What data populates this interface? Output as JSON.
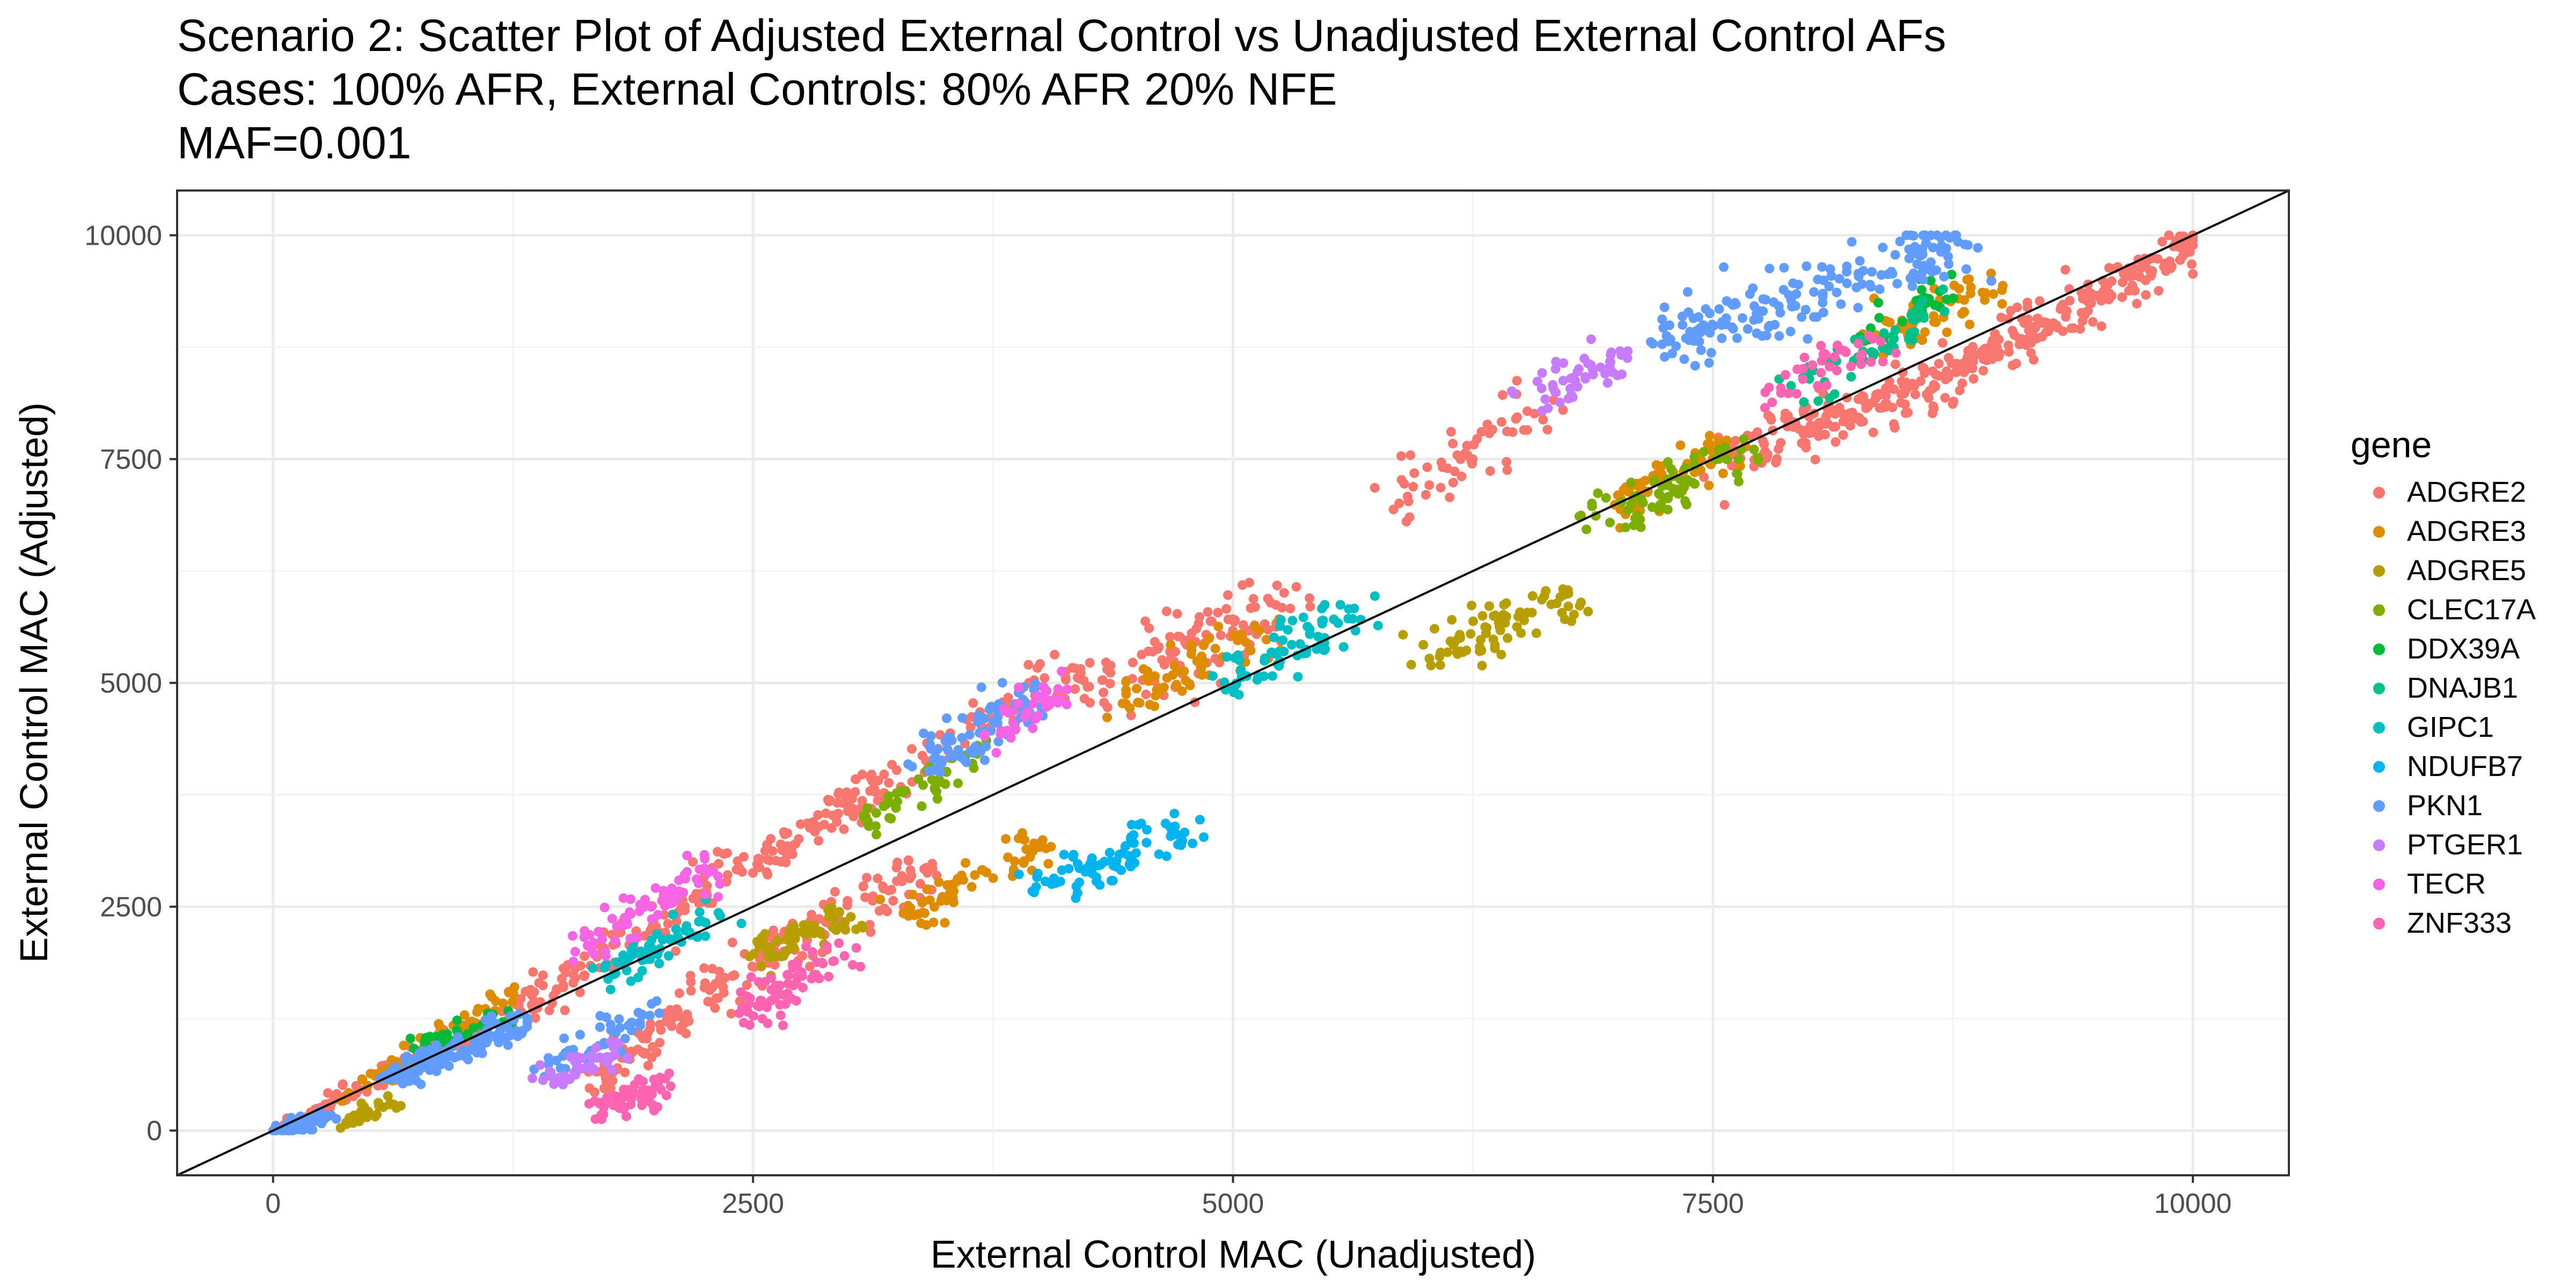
{
  "chart_data": {
    "type": "scatter",
    "title": "Scenario 2: Scatter Plot of Adjusted External Control vs Unadjusted External Control AFs",
    "subtitle": "Cases: 100% AFR, External Controls: 80% AFR 20% NFE",
    "subtitle2": "MAF=0.001",
    "xlabel": "External Control MAC (Unadjusted)",
    "ylabel": "External Control MAC (Adjusted)",
    "xlim": [
      -500,
      10500
    ],
    "ylim": [
      -500,
      10500
    ],
    "xticks": [
      0,
      2500,
      5000,
      7500,
      10000
    ],
    "yticks": [
      0,
      2500,
      5000,
      7500,
      10000
    ],
    "xtick_labels": [
      "0",
      "2500",
      "5000",
      "7500",
      "10000"
    ],
    "ytick_labels": [
      "0",
      "2500",
      "5000",
      "7500",
      "10000"
    ],
    "grid": true,
    "reference_line": "y = x",
    "legend": {
      "title": "gene",
      "position": "right"
    },
    "series": [
      {
        "name": "ADGRE2",
        "color": "#F8766D",
        "clusters": [
          {
            "x": [
              0,
              1300
            ],
            "y": [
              0,
              1400
            ],
            "n": 120,
            "spread": 70
          },
          {
            "x": [
              1300,
              3200
            ],
            "y": [
              1400,
              3900
            ],
            "n": 200,
            "spread": 110
          },
          {
            "x": [
              3200,
              4200
            ],
            "y": [
              3900,
              5200
            ],
            "n": 60,
            "spread": 120
          },
          {
            "x": [
              4200,
              5200
            ],
            "y": [
              4800,
              5900
            ],
            "n": 120,
            "spread": 220
          },
          {
            "x": [
              1650,
              2350
            ],
            "y": [
              500,
              1700
            ],
            "n": 90,
            "spread": 110
          },
          {
            "x": [
              2350,
              3400
            ],
            "y": [
              1700,
              2900
            ],
            "n": 110,
            "spread": 140
          },
          {
            "x": [
              5800,
              6600
            ],
            "y": [
              7000,
              8100
            ],
            "n": 60,
            "spread": 200
          },
          {
            "x": [
              7600,
              8800
            ],
            "y": [
              7500,
              8500
            ],
            "n": 180,
            "spread": 140
          },
          {
            "x": [
              8800,
              10000
            ],
            "y": [
              8500,
              9900
            ],
            "n": 200,
            "spread": 120
          }
        ]
      },
      {
        "name": "ADGRE3",
        "color": "#DE8C00",
        "clusters": [
          {
            "x": [
              300,
              1300
            ],
            "y": [
              300,
              1600
            ],
            "n": 50,
            "spread": 60
          },
          {
            "x": [
              3300,
              4000
            ],
            "y": [
              2400,
              3200
            ],
            "n": 70,
            "spread": 110
          },
          {
            "x": [
              4400,
              5200
            ],
            "y": [
              4700,
              5600
            ],
            "n": 60,
            "spread": 130
          },
          {
            "x": [
              7000,
              7600
            ],
            "y": [
              7000,
              7700
            ],
            "n": 70,
            "spread": 120
          },
          {
            "x": [
              8400,
              9000
            ],
            "y": [
              8900,
              9500
            ],
            "n": 60,
            "spread": 120
          }
        ]
      },
      {
        "name": "ADGRE5",
        "color": "#B79F00",
        "clusters": [
          {
            "x": [
              350,
              650
            ],
            "y": [
              80,
              350
            ],
            "n": 40,
            "spread": 50
          },
          {
            "x": [
              2500,
              3000
            ],
            "y": [
              1900,
              2400
            ],
            "n": 60,
            "spread": 110
          },
          {
            "x": [
              6000,
              6800
            ],
            "y": [
              5300,
              6000
            ],
            "n": 80,
            "spread": 130
          }
        ]
      },
      {
        "name": "CLEC17A",
        "color": "#7CAE00",
        "clusters": [
          {
            "x": [
              3100,
              3700
            ],
            "y": [
              3500,
              4200
            ],
            "n": 50,
            "spread": 110
          },
          {
            "x": [
              6900,
              7700
            ],
            "y": [
              6700,
              7700
            ],
            "n": 70,
            "spread": 140
          }
        ]
      },
      {
        "name": "DDX39A",
        "color": "#00BA38",
        "clusters": [
          {
            "x": [
              700,
              1200
            ],
            "y": [
              900,
              1300
            ],
            "n": 30,
            "spread": 60
          },
          {
            "x": [
              8300,
              8700
            ],
            "y": [
              8900,
              9400
            ],
            "n": 25,
            "spread": 110
          }
        ]
      },
      {
        "name": "DNAJB1",
        "color": "#00C08B",
        "clusters": [
          {
            "x": [
              7900,
              8700
            ],
            "y": [
              8200,
              9200
            ],
            "n": 50,
            "spread": 120
          }
        ]
      },
      {
        "name": "GIPC1",
        "color": "#00BFC4",
        "clusters": [
          {
            "x": [
              1700,
              2300
            ],
            "y": [
              1700,
              2400
            ],
            "n": 60,
            "spread": 100
          },
          {
            "x": [
              4900,
              5700
            ],
            "y": [
              4900,
              5900
            ],
            "n": 70,
            "spread": 130
          }
        ]
      },
      {
        "name": "NDUFB7",
        "color": "#00B4F0",
        "clusters": [
          {
            "x": [
              4000,
              4800
            ],
            "y": [
              2700,
              3400
            ],
            "n": 80,
            "spread": 120
          }
        ]
      },
      {
        "name": "PKN1",
        "color": "#619CFF",
        "clusters": [
          {
            "x": [
              0,
              300
            ],
            "y": [
              0,
              150
            ],
            "n": 50,
            "spread": 50
          },
          {
            "x": [
              600,
              1300
            ],
            "y": [
              600,
              1200
            ],
            "n": 120,
            "spread": 80
          },
          {
            "x": [
              1400,
              2000
            ],
            "y": [
              600,
              1400
            ],
            "n": 50,
            "spread": 100
          },
          {
            "x": [
              3400,
              4000
            ],
            "y": [
              4100,
              4900
            ],
            "n": 80,
            "spread": 130
          },
          {
            "x": [
              7200,
              8800
            ],
            "y": [
              8800,
              9900
            ],
            "n": 180,
            "spread": 170
          }
        ]
      },
      {
        "name": "PTGER1",
        "color": "#C77CFF",
        "clusters": [
          {
            "x": [
              1400,
              1800
            ],
            "y": [
              500,
              900
            ],
            "n": 40,
            "spread": 80
          },
          {
            "x": [
              6600,
              7000
            ],
            "y": [
              8200,
              8600
            ],
            "n": 50,
            "spread": 110
          }
        ]
      },
      {
        "name": "TECR",
        "color": "#F564E3",
        "clusters": [
          {
            "x": [
              1600,
              2300
            ],
            "y": [
              2000,
              3000
            ],
            "n": 70,
            "spread": 110
          },
          {
            "x": [
              3700,
              4100
            ],
            "y": [
              4400,
              4900
            ],
            "n": 40,
            "spread": 100
          }
        ]
      },
      {
        "name": "ZNF333",
        "color": "#FF64B0",
        "clusters": [
          {
            "x": [
              1650,
              2050
            ],
            "y": [
              200,
              500
            ],
            "n": 60,
            "spread": 80
          },
          {
            "x": [
              2400,
              3000
            ],
            "y": [
              1300,
              2000
            ],
            "n": 70,
            "spread": 120
          },
          {
            "x": [
              7700,
              8400
            ],
            "y": [
              8200,
              8800
            ],
            "n": 40,
            "spread": 110
          }
        ]
      }
    ]
  }
}
